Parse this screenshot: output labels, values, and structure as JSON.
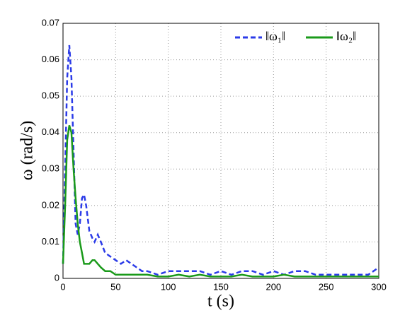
{
  "chart_data": {
    "type": "line",
    "x_label": "t (s)",
    "y_label": "ω (rad/s)",
    "x": [
      0,
      2,
      4,
      6,
      8,
      10,
      12,
      14,
      16,
      18,
      20,
      22,
      25,
      28,
      30,
      33,
      36,
      40,
      45,
      50,
      55,
      60,
      65,
      70,
      75,
      80,
      90,
      100,
      110,
      120,
      130,
      140,
      150,
      160,
      170,
      180,
      190,
      200,
      210,
      220,
      230,
      240,
      250,
      260,
      270,
      280,
      290,
      295,
      300
    ],
    "series": [
      {
        "name": "‖ω₁‖",
        "color": "#2b3be8",
        "dash": true,
        "values": [
          0.004,
          0.03,
          0.055,
          0.064,
          0.055,
          0.035,
          0.015,
          0.012,
          0.015,
          0.022,
          0.023,
          0.02,
          0.013,
          0.011,
          0.01,
          0.012,
          0.01,
          0.007,
          0.006,
          0.005,
          0.004,
          0.005,
          0.004,
          0.003,
          0.002,
          0.002,
          0.001,
          0.002,
          0.002,
          0.002,
          0.002,
          0.001,
          0.002,
          0.001,
          0.002,
          0.002,
          0.001,
          0.002,
          0.001,
          0.002,
          0.002,
          0.001,
          0.001,
          0.001,
          0.001,
          0.001,
          0.001,
          0.002,
          0.003
        ]
      },
      {
        "name": "‖ω₂‖",
        "color": "#1a9a1a",
        "dash": false,
        "values": [
          0.004,
          0.02,
          0.038,
          0.042,
          0.04,
          0.03,
          0.022,
          0.015,
          0.01,
          0.007,
          0.004,
          0.004,
          0.004,
          0.005,
          0.005,
          0.004,
          0.003,
          0.002,
          0.002,
          0.001,
          0.001,
          0.001,
          0.001,
          0.001,
          0.001,
          0.001,
          0.0005,
          0.0005,
          0.001,
          0.0005,
          0.001,
          0.0005,
          0.0005,
          0.0005,
          0.001,
          0.0005,
          0.0005,
          0.0005,
          0.001,
          0.0005,
          0.0005,
          0.0005,
          0.0005,
          0.0005,
          0.0005,
          0.0005,
          0.0005,
          0.0005,
          0.0005
        ]
      }
    ],
    "xlim": [
      0,
      300
    ],
    "xticks": [
      0,
      50,
      100,
      150,
      200,
      250,
      300
    ],
    "ylim": [
      0,
      0.07
    ],
    "yticks": [
      0,
      0.01,
      0.02,
      0.03,
      0.04,
      0.05,
      0.06,
      0.07
    ],
    "grid": true,
    "legend": "top-right"
  }
}
